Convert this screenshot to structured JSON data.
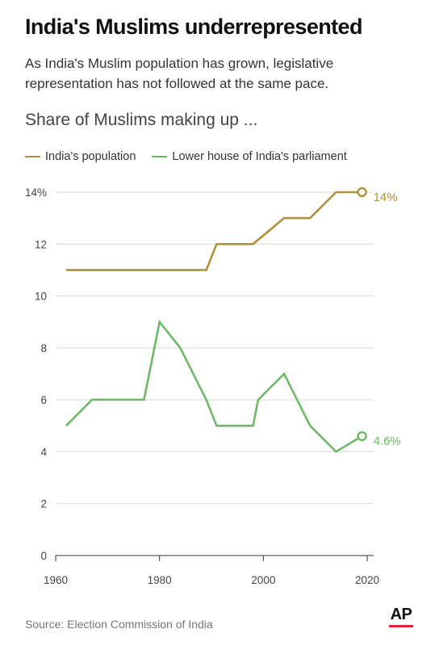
{
  "header": {
    "title": "India's Muslims underrepresented",
    "subtitle": "As India's Muslim population has grown, legislative representation has not followed at the same pace.",
    "chart_heading": "Share of Muslims making up ..."
  },
  "footer": {
    "source": "Source: Election Commission of India",
    "logo_text": "AP"
  },
  "colors": {
    "population": "#b0913b",
    "parliament": "#6dba66",
    "ap_red": "#d7282f"
  },
  "chart_data": {
    "type": "line",
    "title": "Share of Muslims making up ...",
    "xlabel": "",
    "ylabel": "",
    "xlim": [
      1960,
      2020
    ],
    "ylim": [
      0,
      14
    ],
    "x_ticks": [
      1960,
      1980,
      2000,
      2020
    ],
    "y_ticks": [
      0,
      2,
      4,
      6,
      8,
      10,
      12,
      14
    ],
    "y_tick_labels": [
      "0",
      "2",
      "4",
      "6",
      "8",
      "10",
      "12",
      "14%"
    ],
    "grid": "horizontal",
    "legend_position": "top-left",
    "series": [
      {
        "name": "India's population",
        "color": "#b0913b",
        "end_label": "14%",
        "points": [
          {
            "x": 1962,
            "y": 11
          },
          {
            "x": 1989,
            "y": 11
          },
          {
            "x": 1991,
            "y": 12
          },
          {
            "x": 1998,
            "y": 12
          },
          {
            "x": 2004,
            "y": 13
          },
          {
            "x": 2009,
            "y": 13
          },
          {
            "x": 2014,
            "y": 14
          },
          {
            "x": 2019,
            "y": 14
          }
        ]
      },
      {
        "name": "Lower house of India's parliament",
        "color": "#6dba66",
        "end_label": "4.6%",
        "points": [
          {
            "x": 1962,
            "y": 5
          },
          {
            "x": 1967,
            "y": 6
          },
          {
            "x": 1971,
            "y": 6
          },
          {
            "x": 1977,
            "y": 6
          },
          {
            "x": 1980,
            "y": 9
          },
          {
            "x": 1984,
            "y": 8
          },
          {
            "x": 1989,
            "y": 6
          },
          {
            "x": 1991,
            "y": 5
          },
          {
            "x": 1996,
            "y": 5
          },
          {
            "x": 1998,
            "y": 5
          },
          {
            "x": 1999,
            "y": 6
          },
          {
            "x": 2004,
            "y": 7
          },
          {
            "x": 2009,
            "y": 5
          },
          {
            "x": 2014,
            "y": 4
          },
          {
            "x": 2019,
            "y": 4.6
          }
        ]
      }
    ]
  }
}
